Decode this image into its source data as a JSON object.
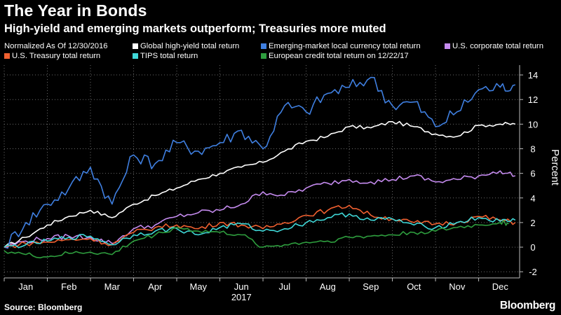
{
  "title": "The Year in Bonds",
  "subtitle": "High-yield and emerging markets outperform; Treasuries more muted",
  "source": "Source: Bloomberg",
  "logo": "Bloomberg",
  "chart_data": {
    "type": "line",
    "legend_note": "Normalized As Of 12/30/2016",
    "ylabel": "Percent",
    "xlabel": "2017",
    "ylim": [
      -2.5,
      14.8
    ],
    "yticks": [
      -2,
      0,
      2,
      4,
      6,
      8,
      10,
      12,
      14
    ],
    "months": [
      "Jan",
      "Feb",
      "Mar",
      "Apr",
      "May",
      "Jun",
      "Jul",
      "Aug",
      "Sep",
      "Oct",
      "Nov",
      "Dec"
    ],
    "grid": true,
    "legend_position": "top",
    "series": [
      {
        "name": "Global high-yield total return",
        "color": "#ffffff",
        "x": [
          0,
          0.5,
          1,
          1.5,
          2,
          2.5,
          3,
          3.5,
          4,
          4.5,
          5,
          5.5,
          6,
          6.5,
          7,
          7.5,
          8,
          8.5,
          9,
          9.5,
          10,
          10.5,
          11,
          11.5,
          11.85
        ],
        "values": [
          0,
          0.8,
          1.8,
          2.5,
          3.0,
          2.4,
          3.5,
          4.2,
          4.8,
          5.5,
          6.0,
          6.5,
          6.9,
          7.8,
          8.6,
          9.0,
          9.8,
          9.7,
          10.2,
          9.8,
          9.2,
          9.0,
          9.9,
          10.0,
          10.0
        ]
      },
      {
        "name": "Emerging-market local currency total return",
        "color": "#3f7fe0",
        "x": [
          0,
          0.5,
          1,
          1.5,
          2,
          2.5,
          3,
          3.5,
          4,
          4.5,
          5,
          5.5,
          6,
          6.5,
          7,
          7.5,
          8,
          8.5,
          9,
          9.5,
          10,
          10.5,
          11,
          11.5,
          11.85
        ],
        "values": [
          0,
          2.0,
          3.5,
          4.8,
          6.5,
          3.5,
          7.5,
          6.8,
          8.5,
          7.8,
          8.5,
          9.5,
          8.0,
          11.5,
          11.0,
          12.5,
          13.0,
          13.8,
          11.5,
          11.8,
          9.8,
          11.0,
          12.8,
          13.0,
          13.2
        ]
      },
      {
        "name": "U.S. corporate total return",
        "color": "#c58bef",
        "x": [
          0,
          0.5,
          1,
          1.5,
          2,
          2.5,
          3,
          3.5,
          4,
          4.5,
          5,
          5.5,
          6,
          6.5,
          7,
          7.5,
          8,
          8.5,
          9,
          9.5,
          10,
          10.5,
          11,
          11.5,
          11.85
        ],
        "values": [
          0,
          0.5,
          0.7,
          0.9,
          0.8,
          0.3,
          1.5,
          1.8,
          2.5,
          2.8,
          3.0,
          3.5,
          4.5,
          4.2,
          4.8,
          5.2,
          5.5,
          5.3,
          5.5,
          5.8,
          5.3,
          5.5,
          5.8,
          6.2,
          5.8
        ]
      },
      {
        "name": "U.S. Treasury total return",
        "color": "#f06030",
        "x": [
          0,
          0.5,
          1,
          1.5,
          2,
          2.5,
          3,
          3.5,
          4,
          4.5,
          5,
          5.5,
          6,
          6.5,
          7,
          7.5,
          8,
          8.5,
          9,
          9.5,
          10,
          10.5,
          11,
          11.5,
          11.85
        ],
        "values": [
          0,
          0.3,
          0.4,
          0.6,
          0.7,
          0.2,
          1.2,
          1.6,
          1.8,
          1.5,
          2.0,
          1.8,
          1.5,
          2.0,
          2.6,
          3.0,
          3.4,
          2.6,
          2.3,
          2.0,
          1.9,
          2.0,
          2.5,
          2.2,
          2.0
        ]
      },
      {
        "name": "TIPS total return",
        "color": "#3fd8d8",
        "x": [
          0,
          0.5,
          1,
          1.5,
          2,
          2.5,
          3,
          3.5,
          4,
          4.5,
          5,
          5.5,
          6,
          6.5,
          7,
          7.5,
          8,
          8.5,
          9,
          9.5,
          10,
          10.5,
          11,
          11.5,
          11.85
        ],
        "values": [
          0,
          0.2,
          0.5,
          0.8,
          0.9,
          0.2,
          1.0,
          1.3,
          1.5,
          1.0,
          1.6,
          1.9,
          1.3,
          1.5,
          2.0,
          2.4,
          2.7,
          2.2,
          2.3,
          1.8,
          1.6,
          2.0,
          2.4,
          2.1,
          2.2
        ]
      },
      {
        "name": "European credit total return on 12/22/17",
        "color": "#2e9e3e",
        "x": [
          0,
          0.5,
          1,
          1.5,
          2,
          2.5,
          3,
          3.5,
          4,
          4.5,
          5,
          5.5,
          6,
          6.5,
          7,
          7.5,
          8,
          8.5,
          9,
          9.5,
          10,
          10.5,
          11,
          11.5,
          11.7
        ],
        "values": [
          -0.3,
          -0.6,
          -0.8,
          -0.5,
          -0.4,
          -0.6,
          0.5,
          1.0,
          1.6,
          1.3,
          1.2,
          1.0,
          0.0,
          0.2,
          0.4,
          0.5,
          0.8,
          0.9,
          1.0,
          1.2,
          1.3,
          1.6,
          1.8,
          2.0,
          1.9
        ]
      }
    ]
  }
}
